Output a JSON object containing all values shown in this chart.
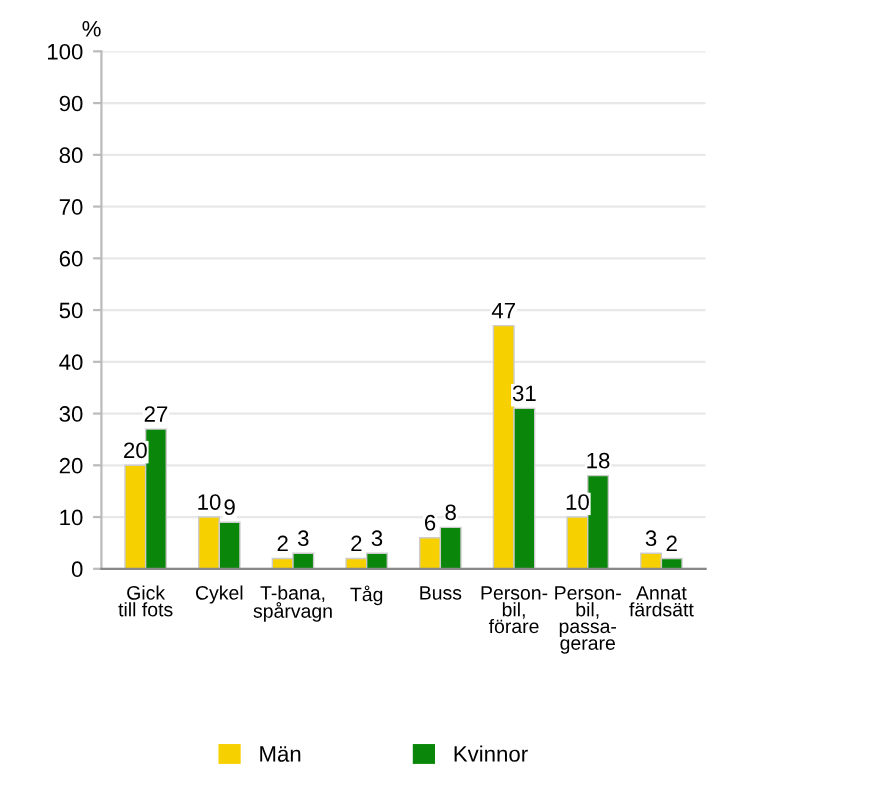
{
  "chart_data": {
    "type": "bar",
    "ylabel": "%",
    "categories": [
      "Gick\ntill fots",
      "Cykel",
      "T-bana,\nspårvagn",
      "Tåg",
      "Buss",
      "Person-\nbil,\nförare",
      "Person-\nbil,\npassa-\ngerare",
      "Annat\nfärdsätt"
    ],
    "series": [
      {
        "name": "Män",
        "color": "#f7d000",
        "values": [
          20,
          10,
          2,
          2,
          6,
          47,
          10,
          3
        ]
      },
      {
        "name": "Kvinnor",
        "color": "#0a870a",
        "values": [
          27,
          9,
          3,
          3,
          8,
          31,
          18,
          2
        ]
      }
    ],
    "ylim": [
      0,
      100
    ],
    "yticks": [
      0,
      10,
      20,
      30,
      40,
      50,
      60,
      70,
      80,
      90,
      100
    ],
    "grid": "y",
    "legend": "bottom",
    "data_labels": true
  }
}
